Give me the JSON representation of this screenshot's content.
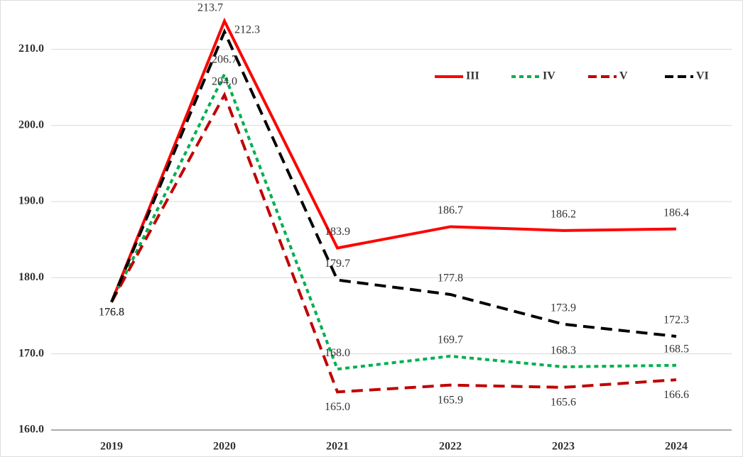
{
  "chart_data": {
    "type": "line",
    "categories": [
      "2019",
      "2020",
      "2021",
      "2022",
      "2023",
      "2024"
    ],
    "series": [
      {
        "name": "III",
        "color": "#ff0000",
        "dash": "solid",
        "values": [
          176.8,
          213.7,
          183.9,
          186.7,
          186.2,
          186.4
        ],
        "value_labels": [
          "176.8",
          "213.7",
          "183.9",
          "186.7",
          "186.2",
          "186.4"
        ]
      },
      {
        "name": "IV",
        "color": "#00b050",
        "dash": "dotted",
        "values": [
          176.8,
          206.7,
          168.0,
          169.7,
          168.3,
          168.5
        ],
        "value_labels": [
          "176.8",
          "206.7",
          "168.0",
          "169.7",
          "168.3",
          "168.5"
        ]
      },
      {
        "name": "V",
        "color": "#c00000",
        "dash": "dashed",
        "values": [
          176.8,
          204.0,
          165.0,
          165.9,
          165.6,
          166.6
        ],
        "value_labels": [
          "176.8",
          "204.0",
          "165.0",
          "165.9",
          "165.6",
          "166.6"
        ]
      },
      {
        "name": "VI",
        "color": "#000000",
        "dash": "dashed",
        "values": [
          176.8,
          212.3,
          179.7,
          177.8,
          173.9,
          172.3
        ],
        "value_labels": [
          "176.8",
          "212.3",
          "179.7",
          "177.8",
          "173.9",
          "172.3"
        ]
      }
    ],
    "ylim": [
      160,
      216
    ],
    "yticks": [
      {
        "value": 160,
        "label": "160.0"
      },
      {
        "value": 170,
        "label": "170.0"
      },
      {
        "value": 180,
        "label": "180.0"
      },
      {
        "value": 190,
        "label": "190.0"
      },
      {
        "value": 200,
        "label": "200.0"
      },
      {
        "value": 210,
        "label": "210.0"
      }
    ],
    "grid": true,
    "legend": "top-right"
  }
}
